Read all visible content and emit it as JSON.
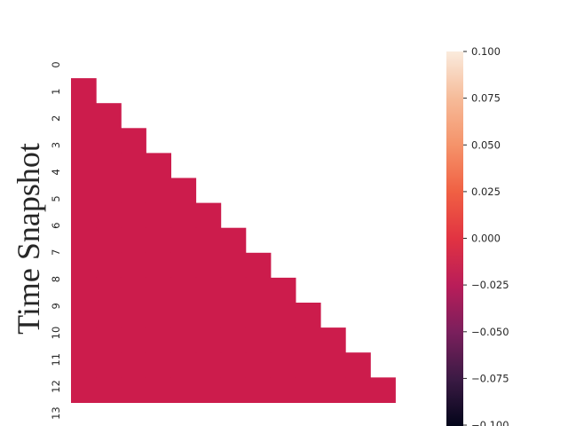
{
  "chart_data": {
    "type": "heatmap",
    "ylabel": "Time Snapshot",
    "xlabel": "",
    "y_tick_labels": [
      "0",
      "1",
      "2",
      "3",
      "4",
      "5",
      "6",
      "7",
      "8",
      "9",
      "10",
      "11",
      "12",
      "13"
    ],
    "n_rows": 14,
    "n_cols": 14,
    "mask": "upper triangle incl. diagonal (only cells with row > col shown)",
    "cell_value": 0.0,
    "cell_color": "#cc1c4c",
    "colorbar": {
      "vmin": -0.1,
      "vmax": 0.1,
      "tick_labels": [
        "0.100",
        "0.075",
        "0.050",
        "0.025",
        "0.000",
        "−0.025",
        "−0.050",
        "−0.075",
        "−0.100"
      ],
      "tick_values": [
        0.1,
        0.075,
        0.05,
        0.025,
        0.0,
        -0.025,
        -0.05,
        -0.075,
        -0.1
      ],
      "colormap_stops": [
        "#03051a",
        "#3b1a44",
        "#7a1f5c",
        "#b91d59",
        "#e13342",
        "#f06043",
        "#f5936a",
        "#f6bb99",
        "#faebdd"
      ]
    },
    "grid": false
  }
}
